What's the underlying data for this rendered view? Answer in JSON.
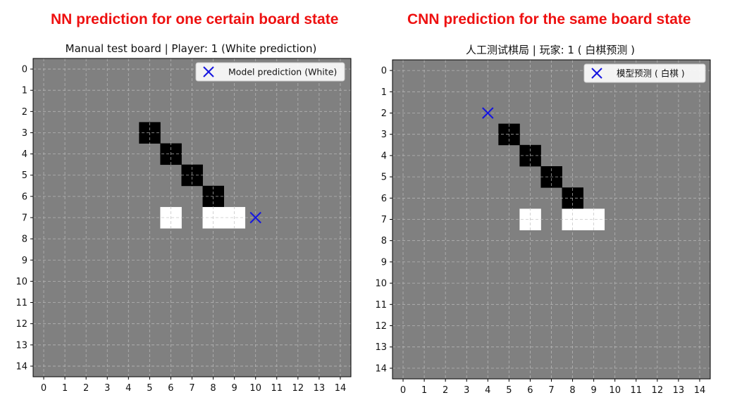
{
  "headers": {
    "left": "NN prediction for one certain board state",
    "right": "CNN prediction for the same board state"
  },
  "colors": {
    "header": "#ee1111",
    "board": "#808080",
    "black_stone": "#000000",
    "white_stone": "#ffffff",
    "marker": "#1515e0",
    "grid": "#bdbdbd"
  },
  "chart_data": [
    {
      "type": "heatmap",
      "title": "Manual test board | Player: 1 (White prediction)",
      "x_ticks": [
        "0",
        "1",
        "2",
        "3",
        "4",
        "5",
        "6",
        "7",
        "8",
        "9",
        "10",
        "11",
        "12",
        "13",
        "14"
      ],
      "y_ticks": [
        "0",
        "1",
        "2",
        "3",
        "4",
        "5",
        "6",
        "7",
        "8",
        "9",
        "10",
        "11",
        "12",
        "13",
        "14"
      ],
      "xlim": [
        0,
        14
      ],
      "ylim": [
        14,
        0
      ],
      "grid": true,
      "board_size": 15,
      "black_stones": [
        [
          5,
          3
        ],
        [
          6,
          4
        ],
        [
          7,
          5
        ],
        [
          8,
          6
        ]
      ],
      "white_stones": [
        [
          6,
          7
        ],
        [
          8,
          7
        ],
        [
          9,
          7
        ]
      ],
      "prediction": {
        "x": 10,
        "y": 7,
        "marker": "x"
      },
      "legend": {
        "label": "Model prediction (White)",
        "position": "top-right"
      }
    },
    {
      "type": "heatmap",
      "title": "人工测试棋局 | 玩家: 1 ( 白棋预测 )",
      "x_ticks": [
        "0",
        "1",
        "2",
        "3",
        "4",
        "5",
        "6",
        "7",
        "8",
        "9",
        "10",
        "11",
        "12",
        "13",
        "14"
      ],
      "y_ticks": [
        "0",
        "1",
        "2",
        "3",
        "4",
        "5",
        "6",
        "7",
        "8",
        "9",
        "10",
        "11",
        "12",
        "13",
        "14"
      ],
      "xlim": [
        0,
        14
      ],
      "ylim": [
        14,
        0
      ],
      "grid": true,
      "board_size": 15,
      "black_stones": [
        [
          5,
          3
        ],
        [
          6,
          4
        ],
        [
          7,
          5
        ],
        [
          8,
          6
        ]
      ],
      "white_stones": [
        [
          6,
          7
        ],
        [
          8,
          7
        ],
        [
          9,
          7
        ]
      ],
      "prediction": {
        "x": 4,
        "y": 2,
        "marker": "x"
      },
      "legend": {
        "label": "模型预测 ( 白棋 )",
        "position": "top-right"
      }
    }
  ]
}
